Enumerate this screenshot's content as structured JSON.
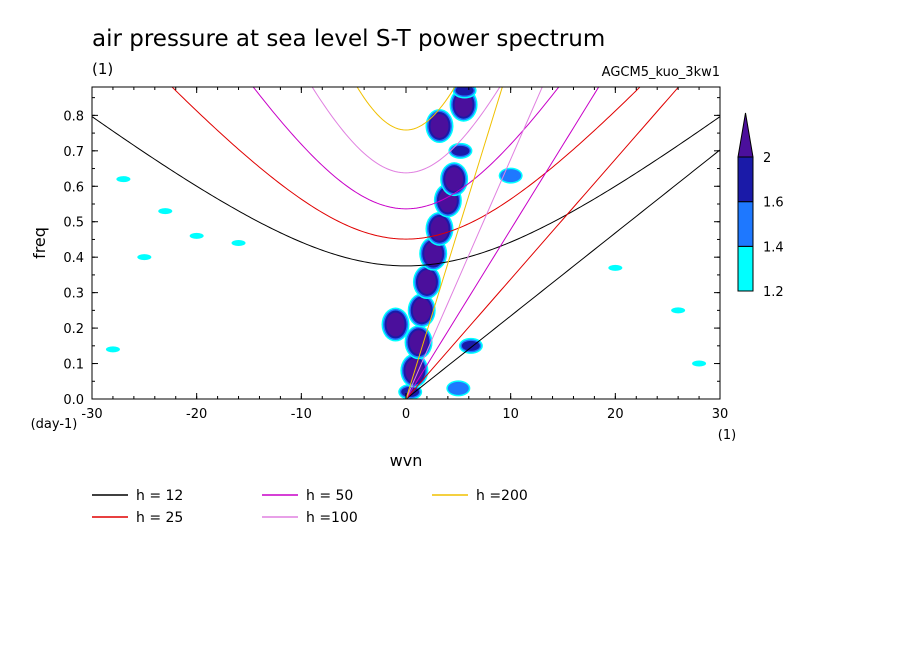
{
  "chart_data": {
    "type": "line",
    "title": "air pressure at sea level S-T power spectrum",
    "title_units": "(1)",
    "run_label": "AGCM5_kuo_3kw1",
    "xlabel": "wvn",
    "x_units": "(1)",
    "ylabel": "freq",
    "y_units": "(day-1)",
    "xlim": [
      -30,
      30
    ],
    "ylim": [
      0,
      0.88
    ],
    "x_ticks": [
      -30,
      -20,
      -10,
      0,
      10,
      20,
      30
    ],
    "x_tick_labels": [
      "-30",
      "-20",
      "-10",
      "0",
      "10",
      "20",
      "30"
    ],
    "y_ticks": [
      0,
      0.1,
      0.2,
      0.3,
      0.4,
      0.5,
      0.6,
      0.7,
      0.8
    ],
    "y_tick_labels": [
      "0.0",
      "0.1",
      "0.2",
      "0.3",
      "0.4",
      "0.5",
      "0.6",
      "0.7",
      "0.8"
    ],
    "colorbar": {
      "levels": [
        1.2,
        1.4,
        1.6,
        2
      ],
      "labels": [
        "1.2",
        "1.4",
        "1.6",
        "2"
      ],
      "colors": [
        "#00ffff",
        "#1e78ff",
        "#1a1aa8",
        "#4b0f9c"
      ]
    },
    "series": [
      {
        "name": "h = 12",
        "h": 12,
        "color": "#000000"
      },
      {
        "name": "h = 25",
        "h": 25,
        "color": "#e00000"
      },
      {
        "name": "h = 50",
        "h": 50,
        "color": "#c800c8"
      },
      {
        "name": "h =100",
        "h": 100,
        "color": "#e080e0"
      },
      {
        "name": "h =200",
        "h": 200,
        "color": "#f0c000"
      }
    ],
    "shaded_patches": [
      {
        "x": 0.4,
        "y": 0.02,
        "level": 1.6
      },
      {
        "x": 0.8,
        "y": 0.08,
        "level": 2
      },
      {
        "x": 1.2,
        "y": 0.16,
        "level": 2
      },
      {
        "x": 1.5,
        "y": 0.25,
        "level": 2
      },
      {
        "x": 2.0,
        "y": 0.33,
        "level": 2
      },
      {
        "x": 2.6,
        "y": 0.41,
        "level": 2
      },
      {
        "x": 3.2,
        "y": 0.48,
        "level": 2
      },
      {
        "x": 4.0,
        "y": 0.56,
        "level": 2
      },
      {
        "x": 4.6,
        "y": 0.62,
        "level": 2
      },
      {
        "x": 5.2,
        "y": 0.7,
        "level": 1.6
      },
      {
        "x": 3.2,
        "y": 0.77,
        "level": 2
      },
      {
        "x": 5.5,
        "y": 0.83,
        "level": 2
      },
      {
        "x": 5.6,
        "y": 0.87,
        "level": 1.6
      },
      {
        "x": -1.0,
        "y": 0.21,
        "level": 2
      },
      {
        "x": 6.2,
        "y": 0.15,
        "level": 1.6
      },
      {
        "x": 5.0,
        "y": 0.03,
        "level": 1.4
      },
      {
        "x": 10.0,
        "y": 0.63,
        "level": 1.4
      },
      {
        "x": -23.0,
        "y": 0.53,
        "level": 1.2
      },
      {
        "x": -20.0,
        "y": 0.46,
        "level": 1.2
      },
      {
        "x": -27.0,
        "y": 0.62,
        "level": 1.2
      },
      {
        "x": -16.0,
        "y": 0.44,
        "level": 1.2
      },
      {
        "x": -25.0,
        "y": 0.4,
        "level": 1.2
      },
      {
        "x": 20.0,
        "y": 0.37,
        "level": 1.2
      },
      {
        "x": 26.0,
        "y": 0.25,
        "level": 1.2
      },
      {
        "x": -28.0,
        "y": 0.14,
        "level": 1.2
      },
      {
        "x": 28.0,
        "y": 0.1,
        "level": 1.2
      }
    ]
  }
}
